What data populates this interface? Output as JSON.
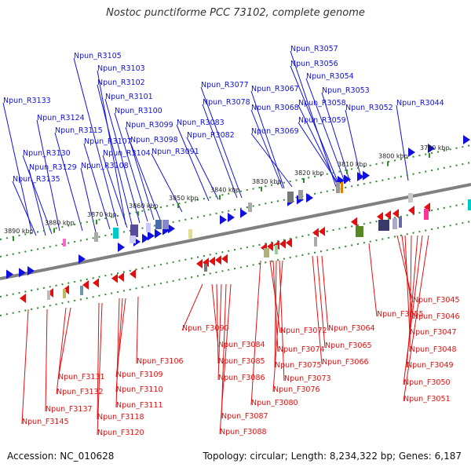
{
  "title": "Nostoc punctiforme PCC 73102, complete genome",
  "accession": "Accession: NC_010628",
  "summary": "Topology: circular; Length: 8,234,322 bp; Genes: 6,187",
  "colors": {
    "forward": "#1010e0",
    "reverse": "#e01010",
    "backbone": "#808080",
    "ruler": "#2e8b2e"
  },
  "ticks": [
    "3890 kbp",
    "3880 kbp",
    "3870 kbp",
    "3860 kbp",
    "3850 kbp",
    "3840 kbp",
    "3830 kbp",
    "3820 kbp",
    "3810 kbp",
    "3800 kbp",
    "3790 kbp"
  ],
  "forward_genes": [
    "Npun_R3133",
    "Npun_R3124",
    "Npun_R3115",
    "Npun_R3130",
    "Npun_R3129",
    "Npun_R3135",
    "Npun_R3105",
    "Npun_R3103",
    "Npun_R3102",
    "Npun_R3101",
    "Npun_R3100",
    "Npun_R3099",
    "Npun_R3107",
    "Npun_R3098",
    "Npun_R3104",
    "Npun_R3108",
    "Npun_R3091",
    "Npun_R3077",
    "Npun_R3078",
    "Npun_R3083",
    "Npun_R3082",
    "Npun_R3067",
    "Npun_R3068",
    "Npun_R3069",
    "Npun_R3057",
    "Npun_R3056",
    "Npun_R3054",
    "Npun_R3053",
    "Npun_R3058",
    "Npun_R3059",
    "Npun_R3052",
    "Npun_R3044"
  ],
  "reverse_genes": [
    "Npun_F3090",
    "Npun_F3084",
    "Npun_F3085",
    "Npun_F3086",
    "Npun_F3087",
    "Npun_F3088",
    "Npun_F3106",
    "Npun_F3109",
    "Npun_F3110",
    "Npun_F3111",
    "Npun_F3118",
    "Npun_F3120",
    "Npun_F3131",
    "Npun_F3132",
    "Npun_F3137",
    "Npun_F3145",
    "Npun_F3072",
    "Npun_F3074",
    "Npun_F3075",
    "Npun_F3073",
    "Npun_F3076",
    "Npun_F3080",
    "Npun_F3064",
    "Npun_F3065",
    "Npun_F3066",
    "Npun_F3055",
    "Npun_F3045",
    "Npun_F3046",
    "Npun_F3047",
    "Npun_F3048",
    "Npun_F3049",
    "Npun_F3050",
    "Npun_F3051"
  ]
}
